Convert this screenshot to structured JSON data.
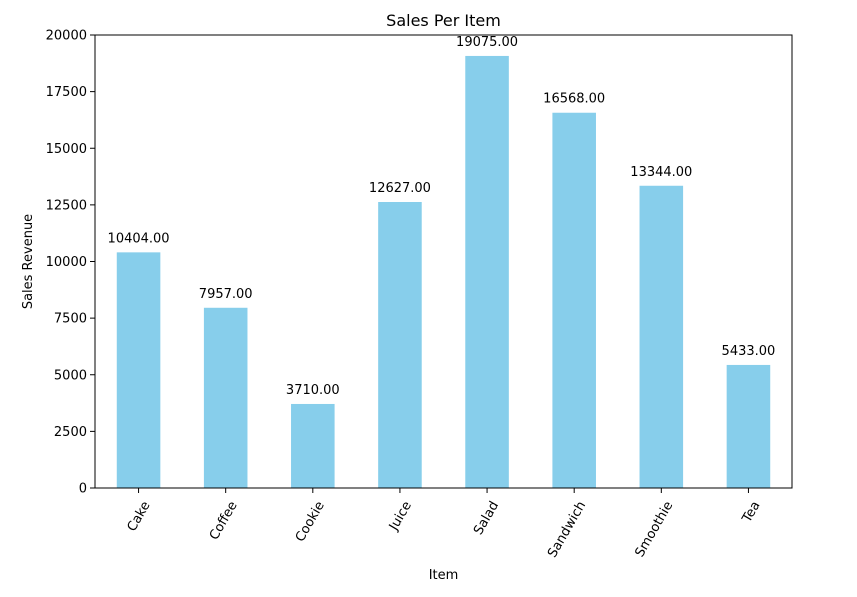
{
  "chart_data": {
    "type": "bar",
    "title": "Sales Per Item",
    "xlabel": "Item",
    "ylabel": "Sales Revenue",
    "categories": [
      "Cake",
      "Coffee",
      "Cookie",
      "Juice",
      "Salad",
      "Sandwich",
      "Smoothie",
      "Tea"
    ],
    "values": [
      10404.0,
      7957.0,
      3710.0,
      12627.0,
      19075.0,
      16568.0,
      13344.0,
      5433.0
    ],
    "value_labels": [
      "10404.00",
      "7957.00",
      "3710.00",
      "12627.00",
      "19075.00",
      "16568.00",
      "13344.00",
      "5433.00"
    ],
    "ylim": [
      0,
      20000
    ],
    "yticks": [
      0,
      2500,
      5000,
      7500,
      10000,
      12500,
      15000,
      17500,
      20000
    ],
    "bar_color": "#87CEEB",
    "grid": false,
    "legend": "none",
    "xtick_rotation": 60
  }
}
